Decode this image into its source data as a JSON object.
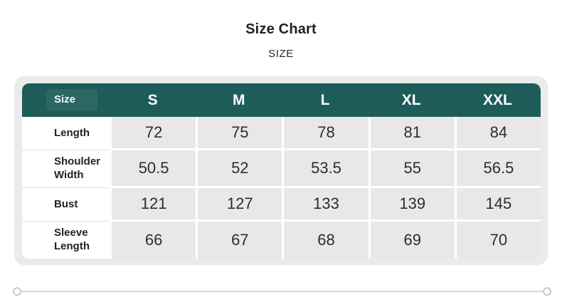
{
  "title": "Size Chart",
  "subtitle": "SIZE",
  "size_table": {
    "corner_label": "Size",
    "columns": [
      "S",
      "M",
      "L",
      "XL",
      "XXL"
    ],
    "rows": [
      {
        "label": "Length",
        "values": [
          "72",
          "75",
          "78",
          "81",
          "84"
        ]
      },
      {
        "label": "Shoulder Width",
        "values": [
          "50.5",
          "52",
          "53.5",
          "55",
          "56.5"
        ]
      },
      {
        "label": "Bust",
        "values": [
          "121",
          "127",
          "133",
          "139",
          "145"
        ]
      },
      {
        "label": "Sleeve Length",
        "values": [
          "66",
          "67",
          "68",
          "69",
          "70"
        ]
      }
    ]
  },
  "colors": {
    "header_bg": "#1d5c59",
    "header_text": "#ffffff",
    "data_cell_bg": "#e9e8e7",
    "frame_bg": "#ebebeb",
    "page_bg": "#ffffff",
    "title_text": "#221e24",
    "scrollbar": "#d7d7d7"
  }
}
